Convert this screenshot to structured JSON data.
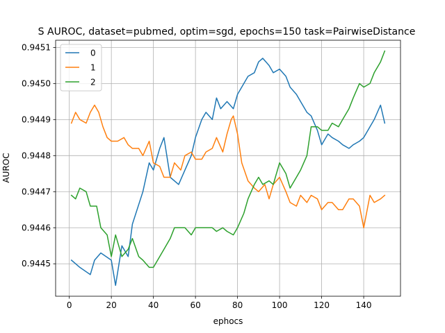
{
  "chart_data": {
    "type": "line",
    "title": "S AUROC, dataset=pubmed, optim=sgd, epochs=150 task=PairwiseDistance",
    "xlabel": "ephocs",
    "ylabel": "AUROC",
    "xlim": [
      -6.5,
      157.5
    ],
    "ylim": [
      0.94441,
      0.94512
    ],
    "xticks": [
      0,
      20,
      40,
      60,
      80,
      100,
      120,
      140
    ],
    "yticks": [
      0.9445,
      0.9446,
      0.9447,
      0.9448,
      0.9449,
      0.945,
      0.9451
    ],
    "xtick_labels": [
      "0",
      "20",
      "40",
      "60",
      "80",
      "100",
      "120",
      "140"
    ],
    "ytick_labels": [
      "0.9445",
      "0.9446",
      "0.9447",
      "0.9448",
      "0.9449",
      "0.9450",
      "0.9451"
    ],
    "grid": true,
    "legend_position": "top-left",
    "series": [
      {
        "name": "0",
        "color": "#1f77b4",
        "x": [
          1,
          5,
          10,
          12,
          15,
          20,
          22,
          25,
          28,
          30,
          35,
          38,
          40,
          43,
          45,
          48,
          52,
          55,
          58,
          60,
          63,
          65,
          68,
          70,
          72,
          75,
          78,
          80,
          83,
          85,
          88,
          90,
          92,
          95,
          97,
          100,
          103,
          105,
          108,
          110,
          113,
          115,
          118,
          120,
          123,
          125,
          128,
          130,
          133,
          135,
          138,
          140,
          143,
          145,
          148,
          150
        ],
        "y": [
          0.94451,
          0.94449,
          0.94447,
          0.94451,
          0.94453,
          0.94451,
          0.94444,
          0.94455,
          0.94452,
          0.94461,
          0.9447,
          0.94478,
          0.94476,
          0.94482,
          0.94485,
          0.94474,
          0.94472,
          0.94476,
          0.9448,
          0.94485,
          0.9449,
          0.94492,
          0.9449,
          0.94496,
          0.94493,
          0.94495,
          0.94493,
          0.94497,
          0.945,
          0.94502,
          0.94503,
          0.94506,
          0.94507,
          0.94505,
          0.94503,
          0.94504,
          0.94502,
          0.94499,
          0.94497,
          0.94495,
          0.94492,
          0.94491,
          0.94487,
          0.94483,
          0.94486,
          0.94485,
          0.94484,
          0.94483,
          0.94482,
          0.94483,
          0.94484,
          0.94485,
          0.94488,
          0.9449,
          0.94494,
          0.94489
        ]
      },
      {
        "name": "1",
        "color": "#ff7f0e",
        "x": [
          1,
          3,
          5,
          8,
          10,
          12,
          14,
          16,
          18,
          20,
          23,
          26,
          28,
          30,
          33,
          35,
          38,
          40,
          43,
          45,
          48,
          50,
          53,
          55,
          58,
          60,
          63,
          65,
          68,
          70,
          73,
          75,
          77,
          78,
          80,
          82,
          85,
          88,
          90,
          93,
          95,
          97,
          100,
          103,
          105,
          108,
          110,
          113,
          115,
          118,
          120,
          123,
          125,
          128,
          130,
          133,
          135,
          138,
          140,
          143,
          145,
          148,
          150
        ],
        "y": [
          0.94489,
          0.94492,
          0.9449,
          0.94489,
          0.94492,
          0.94494,
          0.94492,
          0.94488,
          0.94485,
          0.94484,
          0.94484,
          0.94485,
          0.94483,
          0.94482,
          0.94482,
          0.9448,
          0.94484,
          0.94478,
          0.94477,
          0.94474,
          0.94474,
          0.94478,
          0.94476,
          0.9448,
          0.94481,
          0.94479,
          0.94479,
          0.94481,
          0.94482,
          0.94485,
          0.94481,
          0.94486,
          0.9449,
          0.94491,
          0.94486,
          0.94478,
          0.94473,
          0.94471,
          0.9447,
          0.94472,
          0.94468,
          0.94472,
          0.94474,
          0.9447,
          0.94467,
          0.94466,
          0.94469,
          0.94467,
          0.94469,
          0.94468,
          0.94465,
          0.94467,
          0.94467,
          0.94465,
          0.94465,
          0.94468,
          0.94468,
          0.94466,
          0.9446,
          0.94469,
          0.94467,
          0.94468,
          0.94469
        ]
      },
      {
        "name": "2",
        "color": "#2ca02c",
        "x": [
          1,
          3,
          5,
          8,
          10,
          13,
          15,
          18,
          20,
          22,
          25,
          28,
          30,
          33,
          35,
          38,
          40,
          42,
          45,
          48,
          50,
          53,
          55,
          58,
          60,
          63,
          65,
          68,
          70,
          73,
          75,
          78,
          80,
          83,
          85,
          88,
          90,
          92,
          95,
          97,
          100,
          103,
          105,
          108,
          110,
          113,
          115,
          118,
          120,
          123,
          125,
          128,
          130,
          133,
          135,
          138,
          140,
          143,
          145,
          148,
          150
        ],
        "y": [
          0.94469,
          0.94468,
          0.94471,
          0.9447,
          0.94466,
          0.94466,
          0.9446,
          0.94458,
          0.94452,
          0.94458,
          0.94452,
          0.94454,
          0.94457,
          0.94452,
          0.94451,
          0.94449,
          0.94449,
          0.94451,
          0.94454,
          0.94457,
          0.9446,
          0.9446,
          0.9446,
          0.94458,
          0.9446,
          0.9446,
          0.9446,
          0.9446,
          0.94459,
          0.9446,
          0.94459,
          0.94458,
          0.9446,
          0.94464,
          0.94468,
          0.94472,
          0.94474,
          0.94472,
          0.94473,
          0.94472,
          0.94478,
          0.94475,
          0.94471,
          0.94474,
          0.94476,
          0.9448,
          0.94488,
          0.94488,
          0.94487,
          0.94487,
          0.94489,
          0.94488,
          0.9449,
          0.94493,
          0.94496,
          0.945,
          0.94499,
          0.945,
          0.94503,
          0.94506,
          0.94509
        ]
      }
    ]
  }
}
